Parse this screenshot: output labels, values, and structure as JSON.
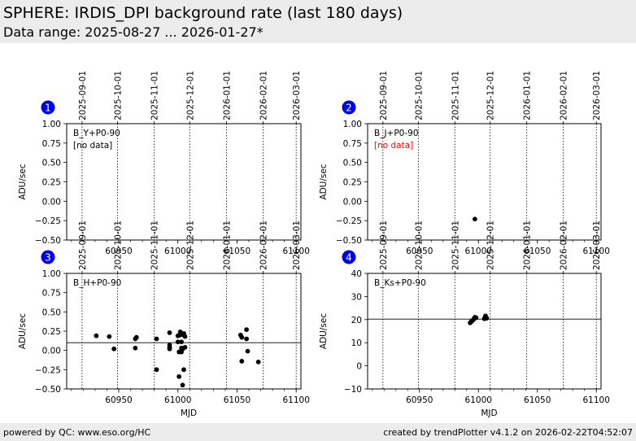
{
  "header": {
    "title": "SPHERE: IRDIS_DPI background rate (last 180 days)",
    "subtitle": "Data range: 2025-08-27 ... 2026-01-27*"
  },
  "footer": {
    "left": "powered by QC: www.eso.org/HC",
    "right": "created by trendPlotter v4.1.2 on 2026-02-22T04:52:07"
  },
  "colors": {
    "marker": "#0000ee",
    "no_data": "#ff0000",
    "points": "#000000",
    "bg": "#ececec"
  },
  "chart_data": [
    {
      "type": "scatter",
      "panel": "1",
      "label": "B_Y+P0-90",
      "note": "[no data]",
      "note_color": "#000000",
      "xlabel": "",
      "ylabel": "ADU/sec",
      "xlim": [
        60906,
        61104
      ],
      "ylim": [
        -0.5,
        1.0
      ],
      "yticks": [
        1.0,
        0.75,
        0.5,
        0.25,
        0.0,
        -0.25,
        -0.5
      ],
      "ytick_labels": [
        "1.00",
        "0.75",
        "0.50",
        "0.25",
        "0.00",
        "−0.25",
        "−0.50"
      ],
      "xticks": [
        60950,
        61000,
        61050,
        61100
      ],
      "xtick_labels": [
        "60950",
        "61000",
        "61050",
        "61100"
      ],
      "date_lines": [
        60919,
        60949,
        60980,
        61010,
        61041,
        61072,
        61100
      ],
      "date_labels": [
        "2025-09-01",
        "2025-10-01",
        "2025-11-01",
        "2025-12-01",
        "2026-01-01",
        "2026-02-01",
        "2026-03-01"
      ],
      "hline": null,
      "points": []
    },
    {
      "type": "scatter",
      "panel": "2",
      "label": "B_J+P0-90",
      "note": "[no data]",
      "note_color": "#ff0000",
      "xlabel": "",
      "ylabel": "ADU/sec",
      "xlim": [
        60906,
        61104
      ],
      "ylim": [
        -0.5,
        1.0
      ],
      "yticks": [
        1.0,
        0.75,
        0.5,
        0.25,
        0.0,
        -0.25,
        -0.5
      ],
      "ytick_labels": [
        "1.00",
        "0.75",
        "0.50",
        "0.25",
        "0.00",
        "−0.25",
        "−0.50"
      ],
      "xticks": [
        60950,
        61000,
        61050,
        61100
      ],
      "xtick_labels": [
        "60950",
        "61000",
        "61050",
        "61100"
      ],
      "date_lines": [
        60919,
        60949,
        60980,
        61010,
        61041,
        61072,
        61100
      ],
      "date_labels": [
        "2025-09-01",
        "2025-10-01",
        "2025-11-01",
        "2025-12-01",
        "2026-01-01",
        "2026-02-01",
        "2026-03-01"
      ],
      "hline": null,
      "points": [
        [
          60997,
          -0.23
        ]
      ]
    },
    {
      "type": "scatter",
      "panel": "3",
      "label": "B_H+P0-90",
      "note": "",
      "note_color": "#000000",
      "xlabel": "MJD",
      "ylabel": "ADU/sec",
      "xlim": [
        60906,
        61104
      ],
      "ylim": [
        -0.5,
        1.0
      ],
      "yticks": [
        1.0,
        0.75,
        0.5,
        0.25,
        0.0,
        -0.25,
        -0.5
      ],
      "ytick_labels": [
        "1.00",
        "0.75",
        "0.50",
        "0.25",
        "0.00",
        "−0.25",
        "−0.50"
      ],
      "xticks": [
        60950,
        61000,
        61050,
        61100
      ],
      "xtick_labels": [
        "60950",
        "61000",
        "61050",
        "61100"
      ],
      "date_lines": [
        60919,
        60949,
        60980,
        61010,
        61041,
        61072,
        61100
      ],
      "date_labels": [
        "2025-09-01",
        "2025-10-01",
        "2025-11-01",
        "2025-12-01",
        "2026-01-01",
        "2026-02-01",
        "2026-03-01"
      ],
      "hline": 0.1,
      "points": [
        [
          60931,
          0.19
        ],
        [
          60942,
          0.18
        ],
        [
          60946,
          0.02
        ],
        [
          60964,
          0.15
        ],
        [
          60964,
          0.03
        ],
        [
          60965,
          0.17
        ],
        [
          60982,
          0.15
        ],
        [
          60982,
          -0.25
        ],
        [
          60993,
          0.23
        ],
        [
          60993,
          0.07
        ],
        [
          60993,
          0.04
        ],
        [
          60993,
          0.02
        ],
        [
          61000,
          0.19
        ],
        [
          61000,
          0.11
        ],
        [
          61001,
          -0.02
        ],
        [
          61001,
          -0.34
        ],
        [
          61002,
          0.24
        ],
        [
          61002,
          0.2
        ],
        [
          61003,
          0.11
        ],
        [
          61003,
          0.03
        ],
        [
          61003,
          -0.02
        ],
        [
          61004,
          -0.45
        ],
        [
          61004,
          0.02
        ],
        [
          61005,
          0.22
        ],
        [
          61005,
          0.2
        ],
        [
          61005,
          -0.25
        ],
        [
          61006,
          0.18
        ],
        [
          61006,
          0.04
        ],
        [
          61053,
          0.2
        ],
        [
          61054,
          0.17
        ],
        [
          61054,
          -0.14
        ],
        [
          61058,
          0.27
        ],
        [
          61058,
          0.15
        ],
        [
          61059,
          -0.01
        ],
        [
          61068,
          -0.15
        ]
      ]
    },
    {
      "type": "scatter",
      "panel": "4",
      "label": "B_Ks+P0-90",
      "note": "",
      "note_color": "#000000",
      "xlabel": "MJD",
      "ylabel": "ADU/sec",
      "xlim": [
        60906,
        61104
      ],
      "ylim": [
        -10,
        40
      ],
      "yticks": [
        40,
        30,
        20,
        10,
        0,
        -10
      ],
      "ytick_labels": [
        "40",
        "30",
        "20",
        "10",
        "0",
        "−10"
      ],
      "xticks": [
        60950,
        61000,
        61050,
        61100
      ],
      "xtick_labels": [
        "60950",
        "61000",
        "61050",
        "61100"
      ],
      "date_lines": [
        60919,
        60949,
        60980,
        61010,
        61041,
        61072,
        61100
      ],
      "date_labels": [
        "2025-09-01",
        "2025-10-01",
        "2025-11-01",
        "2025-12-01",
        "2026-01-01",
        "2026-02-01",
        "2026-03-01"
      ],
      "hline": 20.2,
      "points": [
        [
          60993,
          18.6
        ],
        [
          60994,
          19.2
        ],
        [
          60995,
          19.6
        ],
        [
          60996,
          20.2
        ],
        [
          60997,
          20.6
        ],
        [
          60997,
          21.0
        ],
        [
          60998,
          20.8
        ],
        [
          61005,
          20.4
        ],
        [
          61006,
          21.2
        ],
        [
          61006,
          21.6
        ],
        [
          61007,
          20.6
        ]
      ]
    }
  ]
}
